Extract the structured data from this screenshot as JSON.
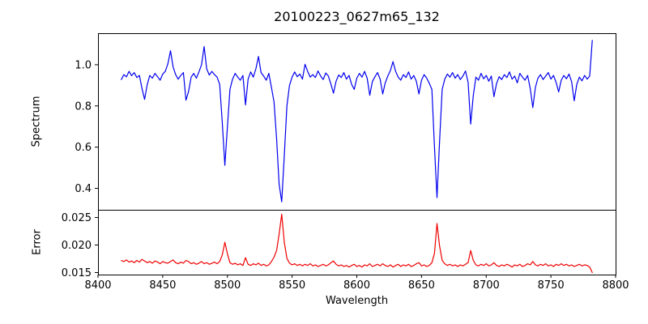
{
  "chart_data": {
    "type": "line",
    "title": "20100223_0627m65_132",
    "xlabel": "Wavelength",
    "x_range": [
      8400,
      8800
    ],
    "x_ticks": [
      8400,
      8450,
      8500,
      8550,
      8600,
      8650,
      8700,
      8750,
      8800
    ],
    "x_start": 8418,
    "x_step": 2,
    "grid": false,
    "legend": "none",
    "panels": [
      {
        "name": "spectrum",
        "ylabel": "Spectrum",
        "color": "#0000ee",
        "ylim": [
          0.296,
          1.153
        ],
        "yticks": [
          0.4,
          0.6,
          0.8,
          1.0
        ],
        "ytick_labels": [
          "0.4",
          "0.6",
          "0.8",
          "1.0"
        ],
        "scale": 0.001,
        "values": [
          928,
          952,
          941,
          968,
          947,
          962,
          938,
          948,
          885,
          832,
          902,
          948,
          935,
          958,
          942,
          925,
          955,
          968,
          1005,
          1068,
          990,
          952,
          930,
          948,
          962,
          828,
          870,
          940,
          958,
          935,
          965,
          1000,
          1088,
          980,
          950,
          968,
          952,
          940,
          905,
          720,
          512,
          700,
          880,
          930,
          958,
          940,
          925,
          948,
          805,
          930,
          965,
          940,
          980,
          1040,
          962,
          945,
          925,
          958,
          890,
          820,
          640,
          420,
          335,
          560,
          800,
          900,
          940,
          965,
          942,
          955,
          930,
          1002,
          968,
          940,
          952,
          938,
          970,
          945,
          928,
          960,
          945,
          905,
          862,
          920,
          950,
          938,
          962,
          930,
          948,
          905,
          880,
          935,
          958,
          940,
          968,
          935,
          852,
          918,
          942,
          962,
          930,
          858,
          912,
          945,
          972,
          1015,
          968,
          940,
          925,
          952,
          938,
          965,
          930,
          948,
          920,
          858,
          925,
          952,
          935,
          910,
          880,
          600,
          355,
          630,
          880,
          930,
          955,
          940,
          962,
          935,
          952,
          928,
          945,
          970,
          915,
          712,
          850,
          940,
          925,
          958,
          932,
          948,
          920,
          945,
          845,
          908,
          942,
          928,
          952,
          938,
          965,
          930,
          945,
          912,
          958,
          940,
          925,
          948,
          885,
          792,
          890,
          935,
          952,
          928,
          945,
          962,
          930,
          948,
          915,
          868,
          925,
          948,
          932,
          955,
          918,
          825,
          905,
          940,
          922,
          948,
          930,
          945,
          1118
        ]
      },
      {
        "name": "error",
        "ylabel": "Error",
        "color": "#ee0000",
        "ylim": [
          0.014632,
          0.0264
        ],
        "yticks": [
          0.015,
          0.02,
          0.025
        ],
        "ytick_labels": [
          "0.015",
          "0.020",
          "0.025"
        ],
        "scale": 0.0001,
        "values": [
          172,
          170,
          173,
          169,
          171,
          168,
          172,
          169,
          174,
          171,
          168,
          170,
          167,
          171,
          169,
          166,
          170,
          168,
          167,
          170,
          173,
          168,
          166,
          169,
          167,
          172,
          170,
          166,
          168,
          165,
          167,
          170,
          166,
          168,
          165,
          167,
          169,
          166,
          170,
          182,
          205,
          184,
          168,
          165,
          167,
          164,
          166,
          163,
          177,
          165,
          163,
          166,
          164,
          167,
          163,
          165,
          162,
          164,
          170,
          178,
          190,
          220,
          256,
          205,
          176,
          167,
          164,
          166,
          163,
          165,
          162,
          165,
          163,
          166,
          162,
          164,
          161,
          163,
          165,
          162,
          164,
          168,
          171,
          165,
          162,
          164,
          161,
          163,
          160,
          163,
          165,
          161,
          163,
          160,
          164,
          162,
          166,
          161,
          163,
          165,
          162,
          166,
          163,
          161,
          164,
          160,
          163,
          165,
          161,
          164,
          162,
          165,
          161,
          163,
          166,
          168,
          162,
          164,
          161,
          163,
          168,
          185,
          239,
          198,
          172,
          166,
          163,
          165,
          162,
          164,
          161,
          164,
          162,
          165,
          168,
          190,
          172,
          164,
          162,
          165,
          163,
          166,
          162,
          164,
          168,
          163,
          161,
          164,
          162,
          165,
          163,
          160,
          164,
          162,
          165,
          161,
          163,
          166,
          164,
          170,
          164,
          162,
          165,
          163,
          166,
          162,
          164,
          161,
          165,
          163,
          166,
          163,
          165,
          162,
          164,
          161,
          163,
          165,
          162,
          164,
          163,
          160,
          150
        ]
      }
    ]
  }
}
